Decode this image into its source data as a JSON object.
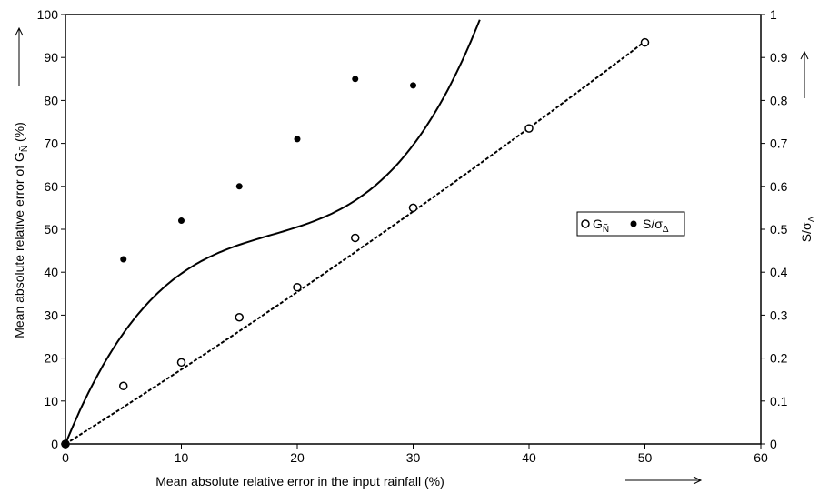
{
  "chart_data": {
    "type": "scatter",
    "xlabel": "Mean absolute relative error in the input rainfall (%)",
    "ylabel_left": "Mean absolute relative error of G",
    "ylabel_left_sub": "Ñ",
    "ylabel_left_unit": "(%)",
    "ylabel_right": "S/σ",
    "ylabel_right_sub": "Δ",
    "xlim": [
      0,
      60
    ],
    "ylim_left": [
      0,
      100
    ],
    "ylim_right": [
      0,
      1
    ],
    "x_ticks": [
      "0",
      "10",
      "20",
      "30",
      "40",
      "50",
      "60"
    ],
    "y_left_ticks": [
      "0",
      "10",
      "20",
      "30",
      "40",
      "50",
      "60",
      "70",
      "80",
      "90",
      "100"
    ],
    "y_right_ticks": [
      "0",
      "0.1",
      "0.2",
      "0.3",
      "0.4",
      "0.5",
      "0.6",
      "0.7",
      "0.8",
      "0.9",
      "1"
    ],
    "grid": false,
    "legend_position": "center-right",
    "series": [
      {
        "name": "G",
        "name_sub": "Ñ",
        "axis": "left",
        "marker": "open-circle",
        "x": [
          0,
          5,
          10,
          15,
          20,
          25,
          30,
          40,
          50
        ],
        "y": [
          0,
          13.5,
          19,
          29.5,
          36.5,
          48,
          55,
          73.5,
          93.5
        ],
        "fit": "dashed"
      },
      {
        "name": "S/σ",
        "name_sub": "Δ",
        "axis": "right",
        "marker": "filled-circle",
        "x": [
          0,
          5,
          10,
          15,
          20,
          25,
          30
        ],
        "y": [
          0,
          0.43,
          0.52,
          0.6,
          0.71,
          0.85,
          0.835
        ],
        "fit": "solid"
      }
    ],
    "arrows": {
      "x_axis": "→",
      "left_axis": "→",
      "right_axis": "→"
    }
  }
}
